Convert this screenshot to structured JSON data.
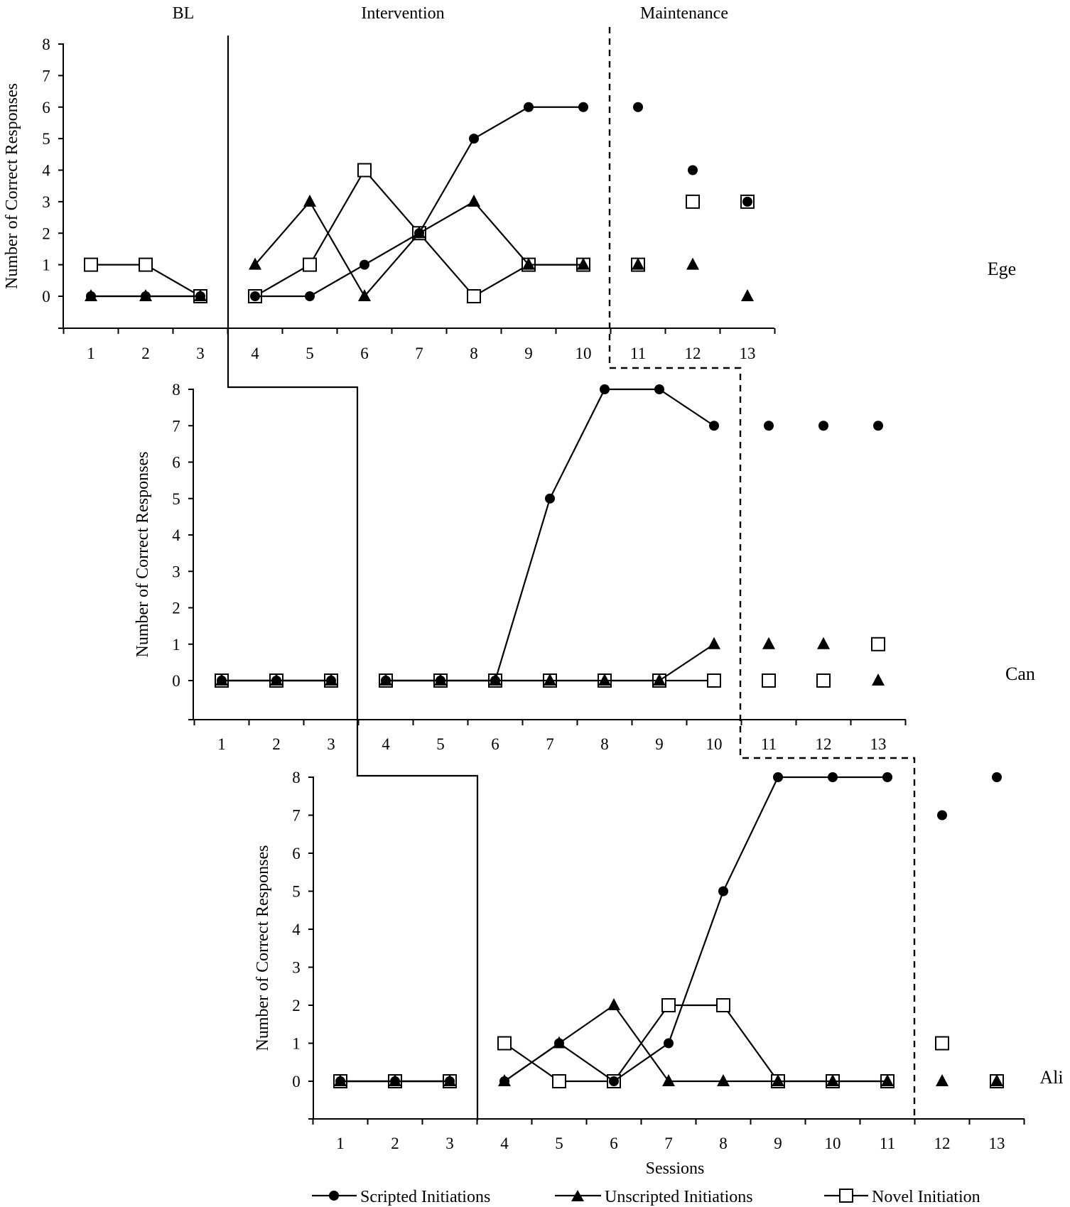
{
  "phase_labels": {
    "baseline": "BL",
    "intervention": "Intervention",
    "maintenance": "Maintenance"
  },
  "legend": {
    "scripted": "Scripted Initiations",
    "unscripted": "Unscripted Initiations",
    "novel": "Novel Initiation"
  },
  "x_axis_title": "Sessions",
  "y_axis_title": "Number of Correct Responses",
  "chart_data": [
    {
      "type": "line",
      "participant": "Ege",
      "xlabel": "",
      "ylabel": "Number of Correct Responses",
      "x_ticks": [
        1,
        2,
        3,
        4,
        5,
        6,
        7,
        8,
        9,
        10,
        11,
        12,
        13
      ],
      "y_ticks": [
        0,
        1,
        2,
        3,
        4,
        5,
        6,
        7,
        8
      ],
      "ylim": [
        -1,
        8
      ],
      "phase_change_after": {
        "baseline": 3,
        "intervention": 10
      },
      "series": [
        {
          "name": "Scripted Initiations",
          "marker": "circle",
          "points": [
            [
              1,
              0
            ],
            [
              2,
              0
            ],
            [
              3,
              0
            ],
            [
              4,
              0
            ],
            [
              5,
              0
            ],
            [
              6,
              1
            ],
            [
              7,
              2
            ],
            [
              8,
              5
            ],
            [
              9,
              6
            ],
            [
              10,
              6
            ],
            [
              11,
              6
            ],
            [
              12,
              4
            ],
            [
              13,
              3
            ]
          ]
        },
        {
          "name": "Unscripted Initiations",
          "marker": "triangle",
          "points": [
            [
              1,
              0
            ],
            [
              2,
              0
            ],
            [
              3,
              0
            ],
            [
              4,
              1
            ],
            [
              5,
              3
            ],
            [
              6,
              0
            ],
            [
              7,
              2
            ],
            [
              8,
              3
            ],
            [
              9,
              1
            ],
            [
              10,
              1
            ],
            [
              11,
              1
            ],
            [
              12,
              1
            ],
            [
              13,
              0
            ]
          ]
        },
        {
          "name": "Novel Initiation",
          "marker": "square",
          "points": [
            [
              1,
              1
            ],
            [
              2,
              1
            ],
            [
              3,
              0
            ],
            [
              4,
              0
            ],
            [
              5,
              1
            ],
            [
              6,
              4
            ],
            [
              7,
              2
            ],
            [
              8,
              0
            ],
            [
              9,
              1
            ],
            [
              10,
              1
            ],
            [
              11,
              1
            ],
            [
              12,
              3
            ],
            [
              13,
              3
            ]
          ]
        }
      ]
    },
    {
      "type": "line",
      "participant": "Can",
      "xlabel": "",
      "ylabel": "Number of Correct Responses",
      "x_ticks": [
        1,
        2,
        3,
        4,
        5,
        6,
        7,
        8,
        9,
        10,
        11,
        12,
        13
      ],
      "y_ticks": [
        0,
        1,
        2,
        3,
        4,
        5,
        6,
        7,
        8
      ],
      "ylim": [
        -1,
        8
      ],
      "phase_change_after": {
        "baseline": 3,
        "intervention": 10
      },
      "series": [
        {
          "name": "Scripted Initiations",
          "marker": "circle",
          "points": [
            [
              1,
              0
            ],
            [
              2,
              0
            ],
            [
              3,
              0
            ],
            [
              4,
              0
            ],
            [
              5,
              0
            ],
            [
              6,
              0
            ],
            [
              7,
              5
            ],
            [
              8,
              8
            ],
            [
              9,
              8
            ],
            [
              10,
              7
            ],
            [
              11,
              7
            ],
            [
              12,
              7
            ],
            [
              13,
              7
            ]
          ]
        },
        {
          "name": "Unscripted Initiations",
          "marker": "triangle",
          "points": [
            [
              1,
              0
            ],
            [
              2,
              0
            ],
            [
              3,
              0
            ],
            [
              4,
              0
            ],
            [
              5,
              0
            ],
            [
              6,
              0
            ],
            [
              7,
              0
            ],
            [
              8,
              0
            ],
            [
              9,
              0
            ],
            [
              10,
              1
            ],
            [
              11,
              1
            ],
            [
              12,
              1
            ],
            [
              13,
              0
            ]
          ]
        },
        {
          "name": "Novel Initiation",
          "marker": "square",
          "points": [
            [
              1,
              0
            ],
            [
              2,
              0
            ],
            [
              3,
              0
            ],
            [
              4,
              0
            ],
            [
              5,
              0
            ],
            [
              6,
              0
            ],
            [
              7,
              0
            ],
            [
              8,
              0
            ],
            [
              9,
              0
            ],
            [
              10,
              0
            ],
            [
              11,
              0
            ],
            [
              12,
              0
            ],
            [
              13,
              1
            ]
          ]
        }
      ]
    },
    {
      "type": "line",
      "participant": "Ali",
      "xlabel": "Sessions",
      "ylabel": "Number of Correct Responses",
      "x_ticks": [
        1,
        2,
        3,
        4,
        5,
        6,
        7,
        8,
        9,
        10,
        11,
        12,
        13
      ],
      "y_ticks": [
        0,
        1,
        2,
        3,
        4,
        5,
        6,
        7,
        8
      ],
      "ylim": [
        -1,
        8
      ],
      "phase_change_after": {
        "baseline": 3,
        "intervention": 11
      },
      "series": [
        {
          "name": "Scripted Initiations",
          "marker": "circle",
          "points": [
            [
              1,
              0
            ],
            [
              2,
              0
            ],
            [
              3,
              0
            ],
            [
              4,
              0
            ],
            [
              5,
              1
            ],
            [
              6,
              0
            ],
            [
              7,
              1
            ],
            [
              8,
              5
            ],
            [
              9,
              8
            ],
            [
              10,
              8
            ],
            [
              11,
              8
            ],
            [
              12,
              7
            ],
            [
              13,
              8
            ]
          ]
        },
        {
          "name": "Unscripted Initiations",
          "marker": "triangle",
          "points": [
            [
              1,
              0
            ],
            [
              2,
              0
            ],
            [
              3,
              0
            ],
            [
              4,
              0
            ],
            [
              5,
              1
            ],
            [
              6,
              2
            ],
            [
              7,
              0
            ],
            [
              8,
              0
            ],
            [
              9,
              0
            ],
            [
              10,
              0
            ],
            [
              11,
              0
            ],
            [
              12,
              0
            ],
            [
              13,
              0
            ]
          ]
        },
        {
          "name": "Novel Initiation",
          "marker": "square",
          "points": [
            [
              1,
              0
            ],
            [
              2,
              0
            ],
            [
              3,
              0
            ],
            [
              4,
              1
            ],
            [
              5,
              0
            ],
            [
              6,
              0
            ],
            [
              7,
              2
            ],
            [
              8,
              2
            ],
            [
              9,
              0
            ],
            [
              10,
              0
            ],
            [
              11,
              0
            ],
            [
              12,
              1
            ],
            [
              13,
              0
            ]
          ]
        }
      ]
    }
  ]
}
